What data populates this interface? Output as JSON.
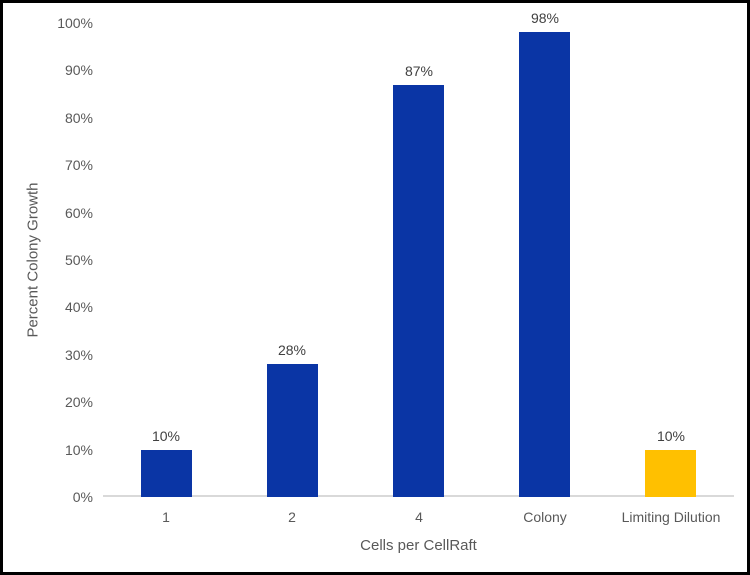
{
  "chart_data": {
    "type": "bar",
    "title": "",
    "categories": [
      "1",
      "2",
      "4",
      "Colony",
      "Limiting Dilution"
    ],
    "values": [
      10,
      28,
      87,
      98,
      10
    ],
    "data_labels": [
      "10%",
      "28%",
      "87%",
      "98%",
      "10%"
    ],
    "xlabel": "Cells per CellRaft",
    "ylabel": "Percent Colony Growth",
    "ylim": [
      0,
      100
    ],
    "ytick_labels": [
      "0%",
      "10%",
      "20%",
      "30%",
      "40%",
      "50%",
      "60%",
      "70%",
      "80%",
      "90%",
      "100%"
    ],
    "grid": false,
    "legend_position": "none",
    "colors": {
      "bar_primary": "#0a35a5",
      "bar_highlight": "#FFC000",
      "bar_fill_by_category": [
        "#0a35a5",
        "#0a35a5",
        "#0a35a5",
        "#0a35a5",
        "#FFC000"
      ],
      "axis_line": "#d9d9d9",
      "tick_label": "#595959",
      "data_label": "#404040",
      "frame_border": "#000000"
    }
  }
}
